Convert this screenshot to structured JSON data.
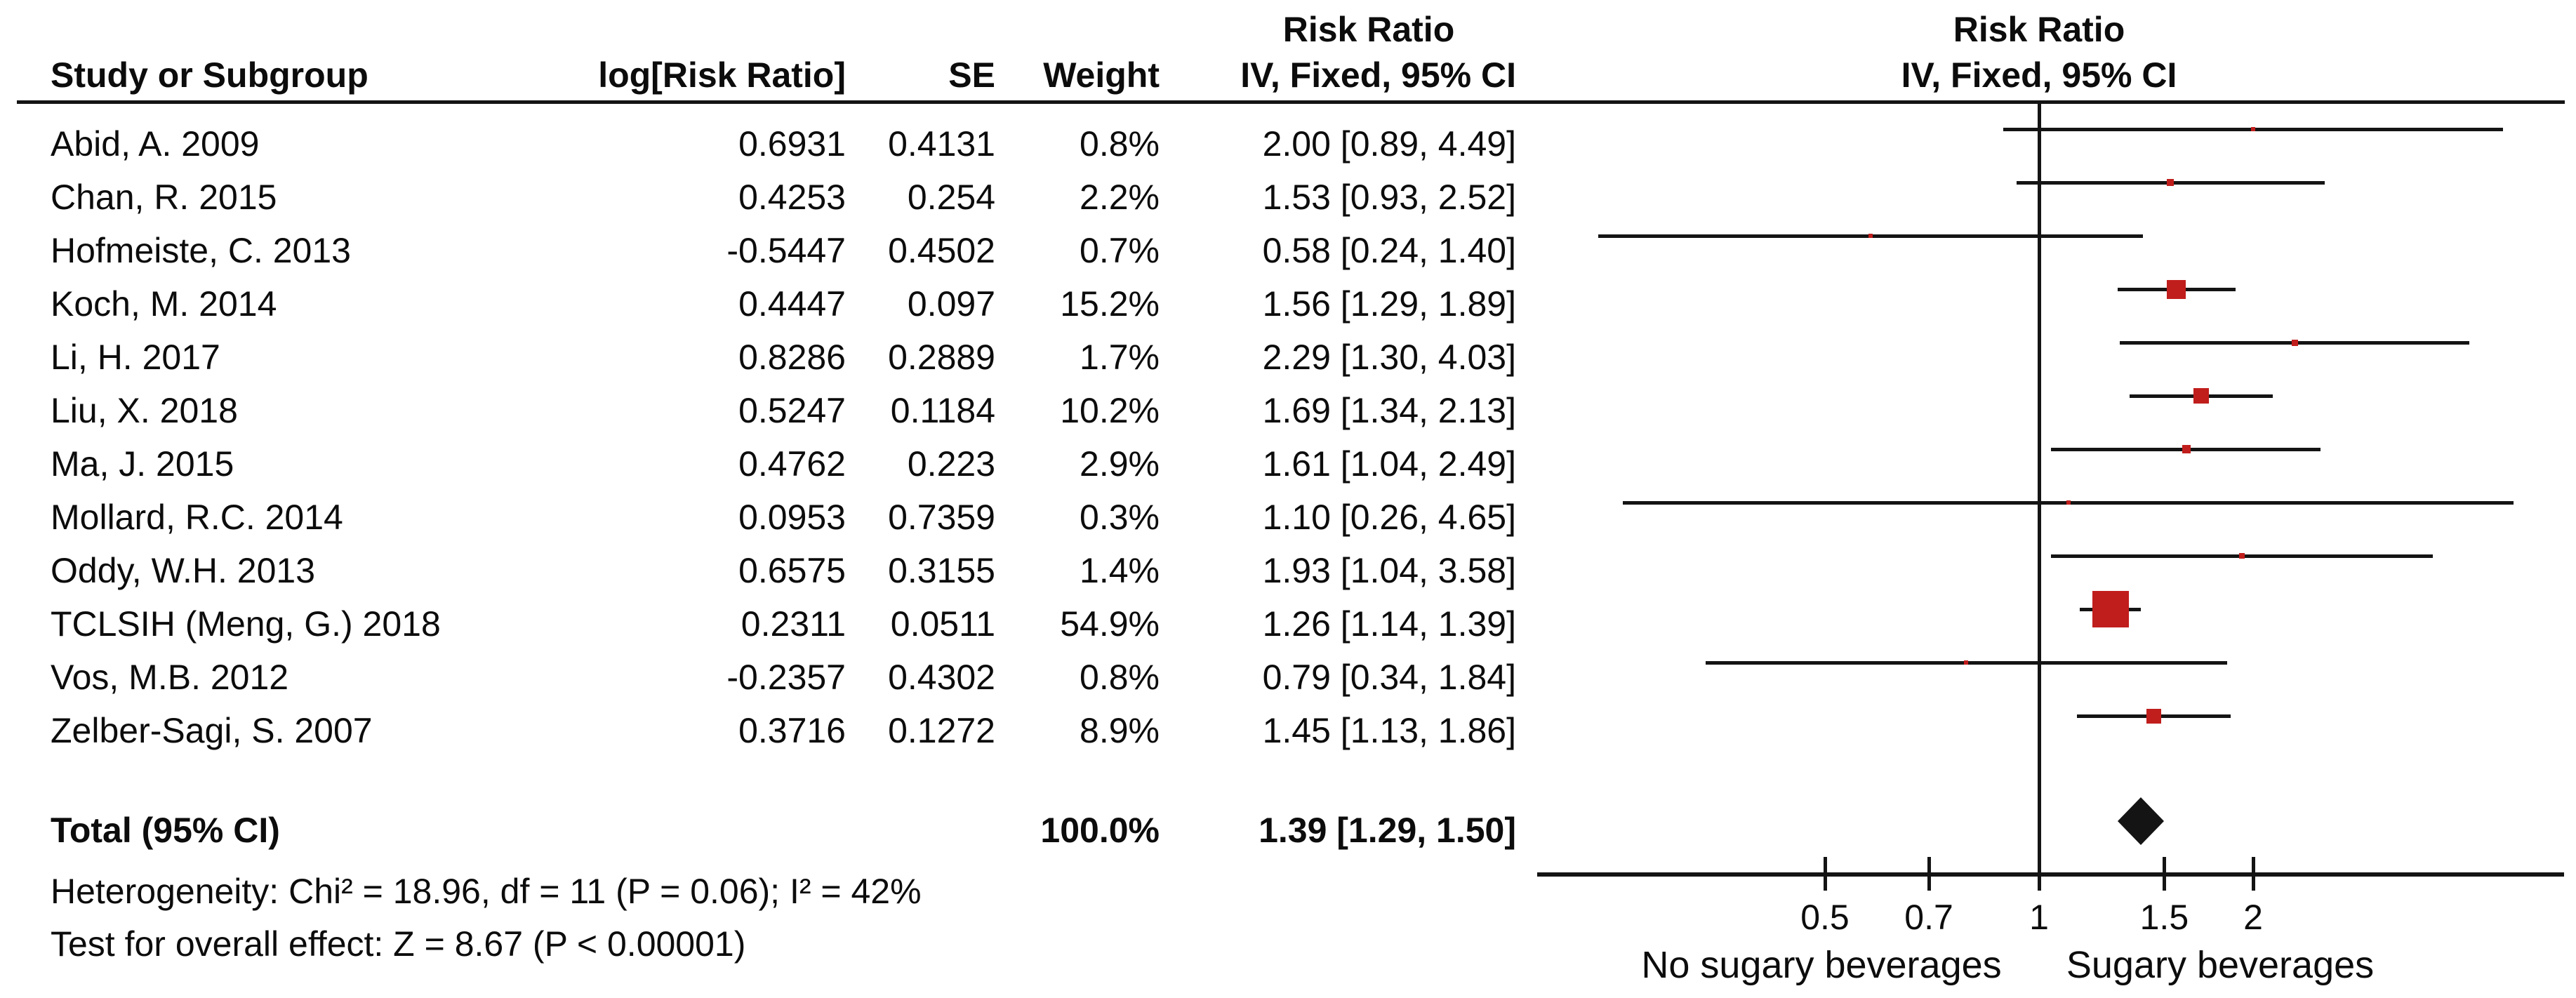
{
  "header": {
    "study": "Study or Subgroup",
    "log_rr": "log[Risk Ratio]",
    "se": "SE",
    "weight": "Weight",
    "rr_left_line1": "Risk Ratio",
    "rr_left_line2": "IV, Fixed, 95% CI",
    "rr_right_line1": "Risk Ratio",
    "rr_right_line2": "IV, Fixed, 95% CI"
  },
  "total": {
    "label": "Total (95% CI)",
    "weight_text": "100.0%",
    "ci_text": "1.39 [1.29, 1.50]"
  },
  "footer": {
    "heterogeneity": "Heterogeneity: Chi² = 18.96, df = 11 (P = 0.06); I² = 42%",
    "overall_effect": "Test for overall effect: Z = 8.67 (P < 0.00001)"
  },
  "colors": {
    "marker_red": "#C01E1C",
    "line_black": "#141414"
  },
  "chart_data": {
    "type": "forest",
    "effect_measure": "Risk Ratio",
    "model": "IV, Fixed, 95% CI",
    "studies": [
      {
        "name": "Abid, A. 2009",
        "log_rr": "0.6931",
        "se": "0.4131",
        "weight_text": "0.8%",
        "weight_pct": 0.8,
        "rr": 2.0,
        "ci_low": 0.89,
        "ci_high": 4.49,
        "ci_text": "2.00 [0.89, 4.49]"
      },
      {
        "name": "Chan, R. 2015",
        "log_rr": "0.4253",
        "se": "0.254",
        "weight_text": "2.2%",
        "weight_pct": 2.2,
        "rr": 1.53,
        "ci_low": 0.93,
        "ci_high": 2.52,
        "ci_text": "1.53 [0.93, 2.52]"
      },
      {
        "name": "Hofmeiste, C. 2013",
        "log_rr": "-0.5447",
        "se": "0.4502",
        "weight_text": "0.7%",
        "weight_pct": 0.7,
        "rr": 0.58,
        "ci_low": 0.24,
        "ci_high": 1.4,
        "ci_text": "0.58 [0.24, 1.40]"
      },
      {
        "name": "Koch, M. 2014",
        "log_rr": "0.4447",
        "se": "0.097",
        "weight_text": "15.2%",
        "weight_pct": 15.2,
        "rr": 1.56,
        "ci_low": 1.29,
        "ci_high": 1.89,
        "ci_text": "1.56 [1.29, 1.89]"
      },
      {
        "name": "Li, H. 2017",
        "log_rr": "0.8286",
        "se": "0.2889",
        "weight_text": "1.7%",
        "weight_pct": 1.7,
        "rr": 2.29,
        "ci_low": 1.3,
        "ci_high": 4.03,
        "ci_text": "2.29 [1.30, 4.03]"
      },
      {
        "name": "Liu, X. 2018",
        "log_rr": "0.5247",
        "se": "0.1184",
        "weight_text": "10.2%",
        "weight_pct": 10.2,
        "rr": 1.69,
        "ci_low": 1.34,
        "ci_high": 2.13,
        "ci_text": "1.69 [1.34, 2.13]"
      },
      {
        "name": "Ma, J. 2015",
        "log_rr": "0.4762",
        "se": "0.223",
        "weight_text": "2.9%",
        "weight_pct": 2.9,
        "rr": 1.61,
        "ci_low": 1.04,
        "ci_high": 2.49,
        "ci_text": "1.61 [1.04, 2.49]"
      },
      {
        "name": "Mollard, R.C. 2014",
        "log_rr": "0.0953",
        "se": "0.7359",
        "weight_text": "0.3%",
        "weight_pct": 0.3,
        "rr": 1.1,
        "ci_low": 0.26,
        "ci_high": 4.65,
        "ci_text": "1.10 [0.26, 4.65]"
      },
      {
        "name": "Oddy, W.H. 2013",
        "log_rr": "0.6575",
        "se": "0.3155",
        "weight_text": "1.4%",
        "weight_pct": 1.4,
        "rr": 1.93,
        "ci_low": 1.04,
        "ci_high": 3.58,
        "ci_text": "1.93 [1.04, 3.58]"
      },
      {
        "name": "TCLSIH (Meng, G.) 2018",
        "log_rr": "0.2311",
        "se": "0.0511",
        "weight_text": "54.9%",
        "weight_pct": 54.9,
        "rr": 1.26,
        "ci_low": 1.14,
        "ci_high": 1.39,
        "ci_text": "1.26 [1.14, 1.39]"
      },
      {
        "name": "Vos, M.B. 2012",
        "log_rr": "-0.2357",
        "se": "0.4302",
        "weight_text": "0.8%",
        "weight_pct": 0.8,
        "rr": 0.79,
        "ci_low": 0.34,
        "ci_high": 1.84,
        "ci_text": "0.79 [0.34, 1.84]"
      },
      {
        "name": "Zelber-Sagi, S. 2007",
        "log_rr": "0.3716",
        "se": "0.1272",
        "weight_text": "8.9%",
        "weight_pct": 8.9,
        "rr": 1.45,
        "ci_low": 1.13,
        "ci_high": 1.86,
        "ci_text": "1.45 [1.13, 1.86]"
      }
    ],
    "total": {
      "label": "Total (95% CI)",
      "weight_pct": 100.0,
      "rr": 1.39,
      "ci_low": 1.29,
      "ci_high": 1.5
    },
    "heterogeneity": {
      "chi2": 18.96,
      "df": 11,
      "p": "0.06",
      "i2": "42%"
    },
    "overall_effect": {
      "z": 8.67,
      "p": "< 0.00001"
    },
    "x_axis": {
      "scale": "log",
      "ticks": [
        {
          "v": 0.5,
          "label": "0.5"
        },
        {
          "v": 0.7,
          "label": "0.7"
        },
        {
          "v": 1,
          "label": "1"
        },
        {
          "v": 1.5,
          "label": "1.5"
        },
        {
          "v": 2,
          "label": "2"
        }
      ],
      "range_low": 0.2,
      "range_high": 5.4,
      "left_label": "No sugary beverages",
      "right_label": "Sugary beverages"
    }
  }
}
